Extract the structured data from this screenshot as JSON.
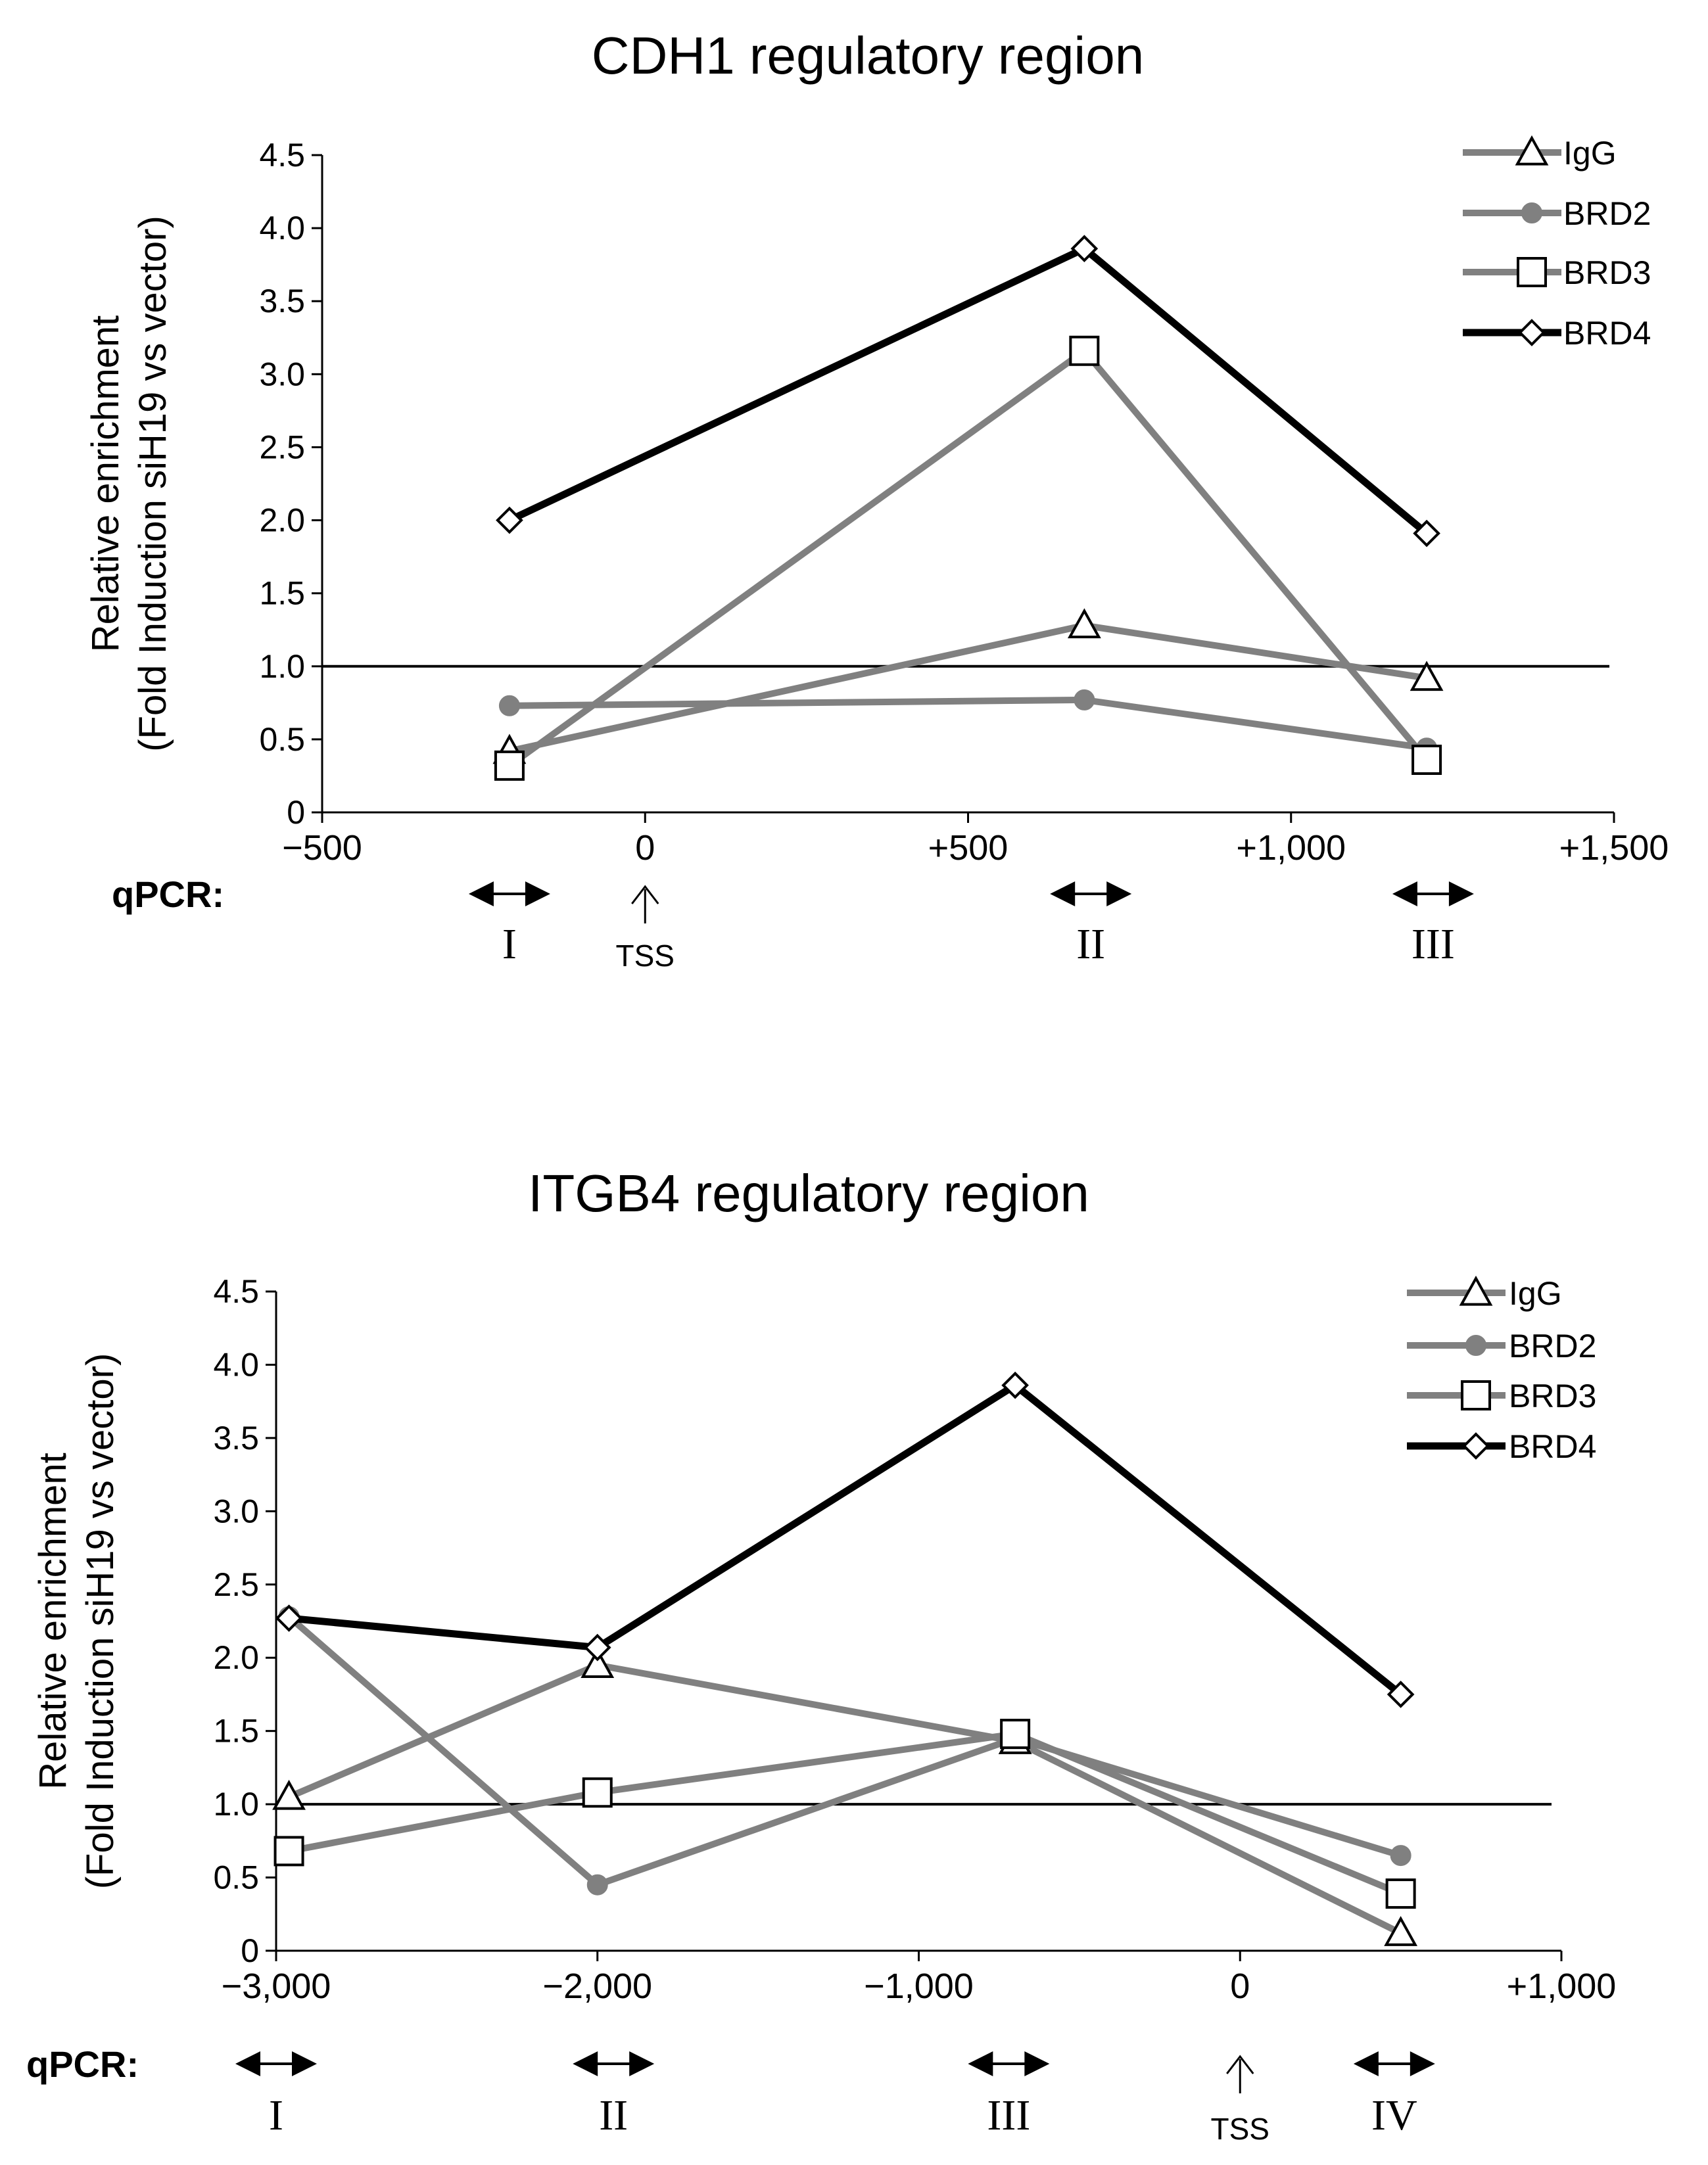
{
  "chart_data": [
    {
      "type": "line",
      "title": "CDH1 regulatory region",
      "ylabel_line1": "Relative enrichment",
      "ylabel_line2": "(Fold Induction siH19 vs vector)",
      "xlim": [
        -500,
        1500
      ],
      "ylim": [
        0,
        4.5
      ],
      "x_ticks": [
        -500,
        0,
        500,
        1000,
        1500
      ],
      "x_tick_labels": [
        "−500",
        "0",
        "+500",
        "+1,000",
        "+1,500"
      ],
      "y_ticks": [
        0,
        0.5,
        1.0,
        1.5,
        2.0,
        2.5,
        3.0,
        3.5,
        4.0,
        4.5
      ],
      "y_tick_labels": [
        "0",
        "0.5",
        "1.0",
        "1.5",
        "2.0",
        "2.5",
        "3.0",
        "3.5",
        "4.0",
        "4.5"
      ],
      "reference_line": 1.0,
      "x": [
        -210,
        680,
        1210
      ],
      "series": [
        {
          "name": "IgG",
          "marker": "triangle",
          "color": "#808080",
          "values": [
            0.42,
            1.28,
            0.92
          ]
        },
        {
          "name": "BRD2",
          "marker": "circle",
          "color": "#808080",
          "values": [
            0.73,
            0.77,
            0.44
          ]
        },
        {
          "name": "BRD3",
          "marker": "square",
          "color": "#808080",
          "values": [
            0.32,
            3.16,
            0.36
          ]
        },
        {
          "name": "BRD4",
          "marker": "diamond",
          "color": "#000000",
          "values": [
            2.0,
            3.86,
            1.91
          ]
        }
      ],
      "legend_position": "top-right",
      "qpcr_label": "qPCR:",
      "qpcr_regions": [
        {
          "label": "I",
          "x": -210
        },
        {
          "label": "II",
          "x": 690
        },
        {
          "label": "III",
          "x": 1220
        }
      ],
      "tss": {
        "label": "TSS",
        "x": 0
      }
    },
    {
      "type": "line",
      "title": "ITGB4 regulatory region",
      "ylabel_line1": "Relative enrichment",
      "ylabel_line2": "(Fold Induction siH19 vs vector)",
      "xlim": [
        -3000,
        1000
      ],
      "ylim": [
        0,
        4.5
      ],
      "x_ticks": [
        -3000,
        -2000,
        -1000,
        0,
        1000
      ],
      "x_tick_labels": [
        "−3,000",
        "−2,000",
        "−1,000",
        "0",
        "+1,000"
      ],
      "y_ticks": [
        0,
        0.5,
        1.0,
        1.5,
        2.0,
        2.5,
        3.0,
        3.5,
        4.0,
        4.5
      ],
      "y_tick_labels": [
        "0",
        "0.5",
        "1.0",
        "1.5",
        "2.0",
        "2.5",
        "3.0",
        "3.5",
        "4.0",
        "4.5"
      ],
      "reference_line": 1.0,
      "x": [
        -2960,
        -2000,
        -700,
        500
      ],
      "series": [
        {
          "name": "IgG",
          "marker": "triangle",
          "color": "#808080",
          "values": [
            1.05,
            1.95,
            1.43,
            0.12
          ]
        },
        {
          "name": "BRD2",
          "marker": "circle",
          "color": "#808080",
          "values": [
            2.28,
            0.45,
            1.45,
            0.65
          ]
        },
        {
          "name": "BRD3",
          "marker": "square",
          "color": "#808080",
          "values": [
            0.68,
            1.08,
            1.48,
            0.39
          ]
        },
        {
          "name": "BRD4",
          "marker": "diamond",
          "color": "#000000",
          "values": [
            2.27,
            2.07,
            3.86,
            1.75
          ]
        }
      ],
      "legend_position": "top-right",
      "qpcr_label": "qPCR:",
      "qpcr_regions": [
        {
          "label": "I",
          "x": -3000
        },
        {
          "label": "II",
          "x": -1950
        },
        {
          "label": "III",
          "x": -720
        },
        {
          "label": "IV",
          "x": 480
        }
      ],
      "tss": {
        "label": "TSS",
        "x": 0
      }
    }
  ]
}
